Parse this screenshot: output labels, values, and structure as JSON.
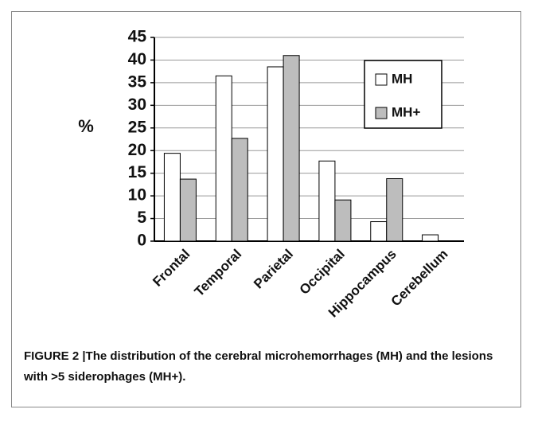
{
  "chart_data": {
    "type": "bar",
    "y_label": "%",
    "categories": [
      "Frontal",
      "Temporal",
      "Parietal",
      "Occipital",
      "Hippocampus",
      "Cerebellum"
    ],
    "series": [
      {
        "name": "MH",
        "color": "#ffffff",
        "values": [
          19.4,
          36.5,
          38.5,
          17.7,
          4.3,
          1.4
        ]
      },
      {
        "name": "MH+",
        "color": "#bdbdbd",
        "values": [
          13.7,
          22.7,
          41,
          9.1,
          13.8,
          0
        ]
      }
    ],
    "ylim": [
      0,
      45
    ],
    "yticks": [
      0,
      5,
      10,
      15,
      20,
      25,
      30,
      35,
      40,
      45
    ],
    "grid": true,
    "legend": "upper right"
  },
  "caption": "FIGURE 2 |The distribution of the cerebral microhemorrhages (MH) and the lesions with >5 siderophages (MH+)."
}
